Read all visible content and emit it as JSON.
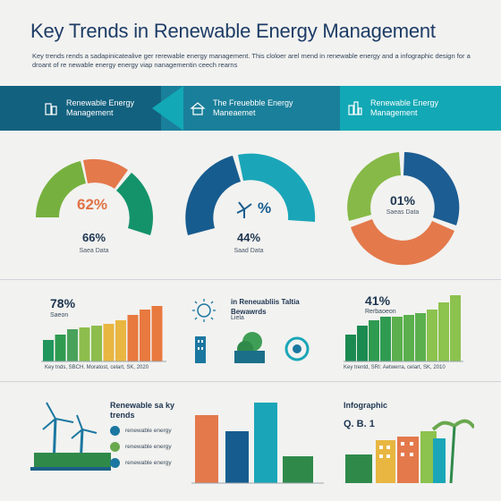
{
  "header": {
    "title": "Key Trends   in Renewable Energy Management",
    "subtitle": "Key trends rends a sadapinicatealive ger rerewable energy management.  This cloloer arel mend in renewable energy and a infographic design for a droant of re newable energy energy viap nanagementin ceech rearns"
  },
  "banner": {
    "segments": [
      {
        "label": "Renewable Energy Management",
        "icon": "building-icon"
      },
      {
        "label": "The Freuebble Energy Maneaemet",
        "icon": "house-icon"
      },
      {
        "label": "Renewable Energy Management",
        "icon": "city-icon"
      }
    ],
    "colors": [
      "#12617f",
      "#1a7f9a",
      "#12a8b5"
    ]
  },
  "donuts": [
    {
      "inner_label": "62%",
      "percent": "66%",
      "caption": "Saea Data",
      "colors": [
        "#76b13f",
        "#e4794b",
        "#14936b"
      ]
    },
    {
      "inner_label": "%",
      "percent": "44%",
      "caption": "Saad Data",
      "colors": [
        "#175c8f",
        "#1aa6b8"
      ]
    },
    {
      "inner_label": "01%",
      "percent": "",
      "caption": "Saeas Data",
      "colors": [
        "#1c5d93",
        "#e4794b",
        "#86b947"
      ]
    }
  ],
  "left_bars": {
    "percent": "78%",
    "label": "Saeon",
    "axis": "Key tnds, SBCH. Moratost,  celart, SK, 2020",
    "colors": [
      "#20965d",
      "#49a25a",
      "#8dbd4c",
      "#e8b641",
      "#e8793f"
    ]
  },
  "middle": {
    "title": "in Reneuabliis Taltia Bewawrds",
    "sub": "Liela"
  },
  "right_bars": {
    "percent": "41%",
    "label": "Rerbaoeon",
    "axis": "Key trentd,  SRI: Aetwerra,  celart, SK, 2010",
    "colors": [
      "#1b8a51",
      "#2f9b51",
      "#5bb04d",
      "#8cc24e"
    ]
  },
  "bottom_left": {
    "title": "Renewable sa ky trends",
    "items": [
      {
        "label": "renewable energy",
        "color": "#1b77a0"
      },
      {
        "label": "renewable energy",
        "color": "#6aa84f"
      },
      {
        "label": "renewable energy",
        "color": "#1b77a0"
      }
    ]
  },
  "bottom_right": {
    "title": "Infographic",
    "sub": "Q. B. 1"
  }
}
